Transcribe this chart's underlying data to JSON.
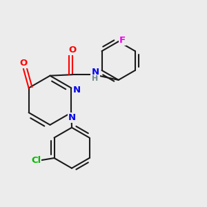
{
  "bg_color": "#ececec",
  "bond_color": "#1a1a1a",
  "bond_width": 1.5,
  "dbo": 0.018,
  "atom_colors": {
    "O": "#ff0000",
    "N": "#0000ee",
    "Cl": "#00bb00",
    "F": "#ee00ee",
    "NH_color": "#1a1a1a",
    "H_color": "#6e8b8b"
  },
  "font_size": 9.5,
  "fig_size": [
    3.0,
    3.0
  ],
  "dpi": 100
}
